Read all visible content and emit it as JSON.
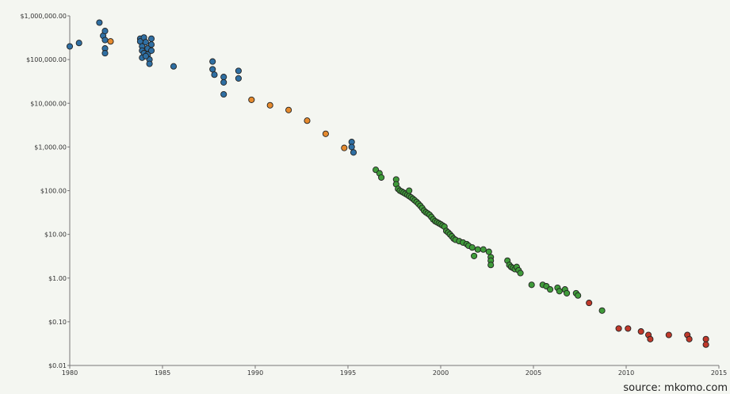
{
  "chart_data": {
    "type": "scatter",
    "title": "",
    "xlabel": "",
    "ylabel": "",
    "x_ticks": [
      "1980",
      "1985",
      "1990",
      "1995",
      "2000",
      "2005",
      "2010",
      "2015"
    ],
    "x_tick_values": [
      1980,
      1985,
      1990,
      1995,
      2000,
      2005,
      2010,
      2015
    ],
    "y_ticks": [
      "$1,000,000.00",
      "$100,000.00",
      "$10,000.00",
      "$1,000.00",
      "$100.00",
      "$10.00",
      "$1.00",
      "$0.10",
      "$0.01"
    ],
    "y_tick_values": [
      1000000,
      100000,
      10000,
      1000,
      100,
      10,
      1,
      0.1,
      0.01
    ],
    "xlim": [
      1980,
      2015
    ],
    "ylim": [
      0.01,
      1000000
    ],
    "y_scale": "log",
    "grid": false,
    "annotation": "source: mkomo.com",
    "series": [
      {
        "color": "#2f6fa3",
        "points": [
          [
            1980.0,
            200000
          ],
          [
            1980.5,
            240000
          ],
          [
            1981.6,
            700000
          ],
          [
            1981.8,
            350000
          ],
          [
            1981.9,
            450000
          ],
          [
            1981.9,
            280000
          ],
          [
            1981.9,
            180000
          ],
          [
            1981.9,
            140000
          ],
          [
            1983.8,
            300000
          ],
          [
            1983.8,
            260000
          ],
          [
            1983.9,
            200000
          ],
          [
            1983.9,
            160000
          ],
          [
            1984.0,
            140000
          ],
          [
            1983.9,
            110000
          ],
          [
            1984.0,
            320000
          ],
          [
            1984.1,
            250000
          ],
          [
            1984.2,
            180000
          ],
          [
            1984.2,
            130000
          ],
          [
            1984.3,
            100000
          ],
          [
            1984.3,
            80000
          ],
          [
            1984.4,
            300000
          ],
          [
            1984.4,
            220000
          ],
          [
            1984.4,
            160000
          ],
          [
            1984.1,
            120000
          ],
          [
            1985.6,
            70000
          ],
          [
            1987.7,
            90000
          ],
          [
            1987.7,
            60000
          ],
          [
            1987.8,
            45000
          ],
          [
            1988.3,
            40000
          ],
          [
            1988.3,
            30000
          ],
          [
            1988.3,
            16000
          ],
          [
            1989.1,
            55000
          ],
          [
            1989.1,
            37000
          ],
          [
            1995.2,
            1300
          ],
          [
            1995.2,
            1000
          ],
          [
            1995.3,
            750
          ]
        ]
      },
      {
        "color": "#e58a2e",
        "points": [
          [
            1982.2,
            260000
          ],
          [
            1989.8,
            12000
          ],
          [
            1990.8,
            9000
          ],
          [
            1991.8,
            7000
          ],
          [
            1992.8,
            4000
          ],
          [
            1993.8,
            2000
          ],
          [
            1994.8,
            950
          ]
        ]
      },
      {
        "color": "#3f9b3a",
        "points": [
          [
            1996.5,
            300
          ],
          [
            1996.7,
            250
          ],
          [
            1996.8,
            200
          ],
          [
            1997.6,
            180
          ],
          [
            1997.6,
            140
          ],
          [
            1997.7,
            110
          ],
          [
            1997.8,
            100
          ],
          [
            1997.9,
            95
          ],
          [
            1998.0,
            90
          ],
          [
            1998.1,
            85
          ],
          [
            1998.2,
            80
          ],
          [
            1998.3,
            75
          ],
          [
            1998.3,
            100
          ],
          [
            1998.4,
            70
          ],
          [
            1998.5,
            65
          ],
          [
            1998.6,
            60
          ],
          [
            1998.7,
            55
          ],
          [
            1998.8,
            50
          ],
          [
            1998.9,
            45
          ],
          [
            1999.0,
            40
          ],
          [
            1999.1,
            35
          ],
          [
            1999.2,
            32
          ],
          [
            1999.3,
            30
          ],
          [
            1999.4,
            28
          ],
          [
            1999.5,
            25
          ],
          [
            1999.6,
            22
          ],
          [
            1999.7,
            20
          ],
          [
            1999.8,
            19
          ],
          [
            1999.9,
            18
          ],
          [
            2000.0,
            17
          ],
          [
            2000.1,
            16
          ],
          [
            2000.2,
            15
          ],
          [
            2000.3,
            12
          ],
          [
            2000.4,
            11
          ],
          [
            2000.5,
            10
          ],
          [
            2000.6,
            9
          ],
          [
            2000.7,
            8
          ],
          [
            2000.8,
            7.5
          ],
          [
            2001.0,
            7
          ],
          [
            2001.2,
            6.5
          ],
          [
            2001.4,
            6
          ],
          [
            2001.5,
            5.5
          ],
          [
            2001.7,
            5
          ],
          [
            2002.0,
            4.5
          ],
          [
            2002.3,
            4.5
          ],
          [
            2002.6,
            4
          ],
          [
            2002.7,
            3
          ],
          [
            2002.7,
            2.5
          ],
          [
            2001.8,
            3.2
          ],
          [
            2002.7,
            2
          ],
          [
            2003.6,
            2.5
          ],
          [
            2003.7,
            2
          ],
          [
            2003.8,
            1.8
          ],
          [
            2003.9,
            1.7
          ],
          [
            2004.0,
            1.6
          ],
          [
            2004.1,
            1.8
          ],
          [
            2004.2,
            1.5
          ],
          [
            2004.3,
            1.3
          ],
          [
            2004.9,
            0.7
          ],
          [
            2005.5,
            0.7
          ],
          [
            2005.7,
            0.65
          ],
          [
            2005.9,
            0.55
          ],
          [
            2006.3,
            0.6
          ],
          [
            2006.4,
            0.5
          ],
          [
            2006.7,
            0.55
          ],
          [
            2006.8,
            0.45
          ],
          [
            2007.3,
            0.45
          ],
          [
            2007.4,
            0.4
          ],
          [
            2008.7,
            0.18
          ]
        ]
      },
      {
        "color": "#c0392b",
        "points": [
          [
            2008.0,
            0.27
          ],
          [
            2009.6,
            0.07
          ],
          [
            2010.1,
            0.07
          ],
          [
            2010.8,
            0.06
          ],
          [
            2011.2,
            0.05
          ],
          [
            2011.3,
            0.04
          ],
          [
            2012.3,
            0.05
          ],
          [
            2013.3,
            0.05
          ],
          [
            2013.4,
            0.04
          ],
          [
            2014.3,
            0.04
          ],
          [
            2014.3,
            0.03
          ]
        ]
      }
    ]
  }
}
